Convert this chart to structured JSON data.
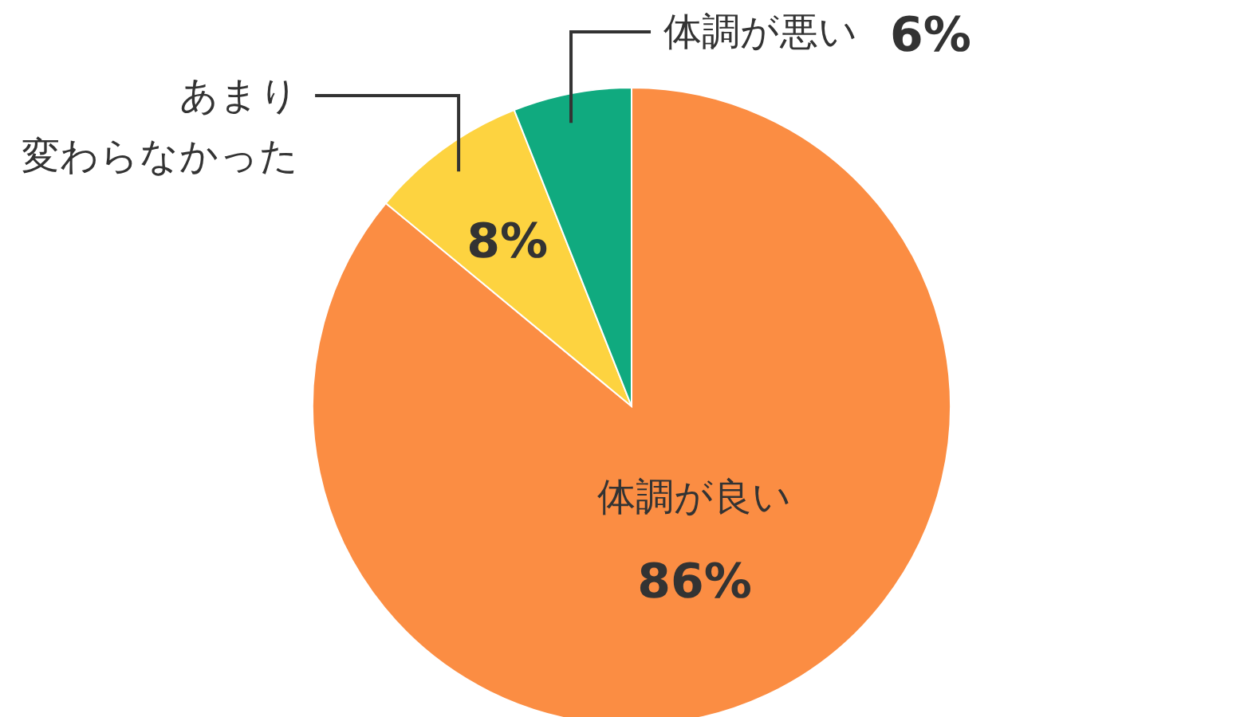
{
  "chart_data": {
    "type": "pie",
    "categories": [
      "体調が良い",
      "あまり変わらなかった",
      "体調が悪い"
    ],
    "values": [
      86,
      8,
      6
    ],
    "value_labels": [
      "86%",
      "8%",
      "6%"
    ],
    "colors": [
      "#fb8d43",
      "#fdd340",
      "#10aa7f"
    ]
  }
}
